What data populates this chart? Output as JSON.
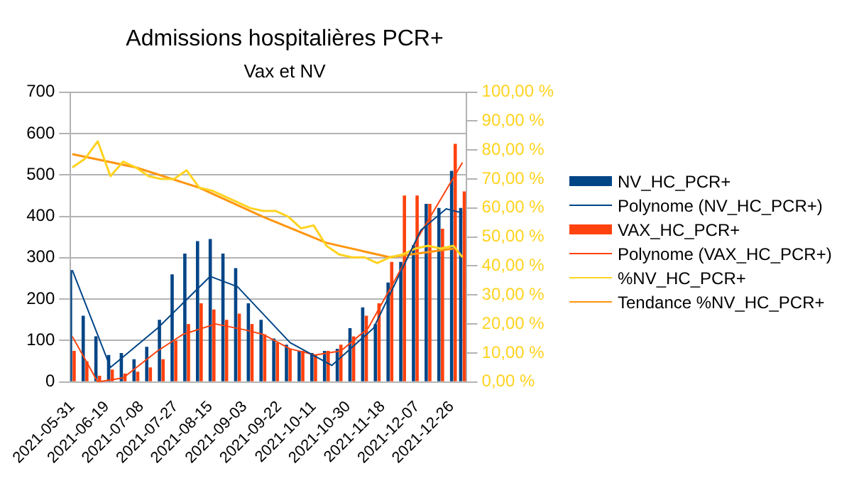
{
  "chart_data": {
    "type": "bar",
    "title": "Admissions hospitalières PCR+",
    "subtitle": "Vax et NV",
    "x": [
      "2021-05-31",
      "2021-06-07",
      "2021-06-14",
      "2021-06-21",
      "2021-06-28",
      "2021-07-05",
      "2021-07-12",
      "2021-07-19",
      "2021-07-26",
      "2021-08-02",
      "2021-08-09",
      "2021-08-16",
      "2021-08-23",
      "2021-08-30",
      "2021-09-06",
      "2021-09-13",
      "2021-09-20",
      "2021-09-27",
      "2021-10-04",
      "2021-10-11",
      "2021-10-18",
      "2021-10-25",
      "2021-11-01",
      "2021-11-08",
      "2021-11-15",
      "2021-11-22",
      "2021-11-29",
      "2021-12-06",
      "2021-12-13",
      "2021-12-20",
      "2021-12-27",
      "2022-01-01"
    ],
    "xlim": [
      "2021-05-30",
      "2022-01-03"
    ],
    "xticks": [
      "2021-05-31",
      "2021-06-19",
      "2021-07-08",
      "2021-07-27",
      "2021-08-15",
      "2021-09-03",
      "2021-09-22",
      "2021-10-11",
      "2021-10-30",
      "2021-11-18",
      "2021-12-07",
      "2021-12-26"
    ],
    "ylim": [
      0,
      700
    ],
    "yticks": [
      0,
      100,
      200,
      300,
      400,
      500,
      600,
      700
    ],
    "y2lim": [
      0,
      100
    ],
    "y2ticks": [
      {
        "value": 0,
        "label": "0,00 %"
      },
      {
        "value": 10,
        "label": "10,00 %"
      },
      {
        "value": 20,
        "label": "20,00 %"
      },
      {
        "value": 30,
        "label": "30,00 %"
      },
      {
        "value": 40,
        "label": "40,00 %"
      },
      {
        "value": 50,
        "label": "50,00 %"
      },
      {
        "value": 60,
        "label": "60,00 %"
      },
      {
        "value": 70,
        "label": "70,00 %"
      },
      {
        "value": 80,
        "label": "80,00 %"
      },
      {
        "value": 90,
        "label": "90,00 %"
      },
      {
        "value": 100,
        "label": "100,00 %"
      }
    ],
    "grid": "y",
    "legend": "right",
    "series": [
      {
        "name": "NV_HC_PCR+",
        "color": "#004586",
        "values": [
          270,
          160,
          110,
          65,
          70,
          55,
          85,
          150,
          260,
          310,
          340,
          345,
          310,
          275,
          190,
          150,
          105,
          90,
          75,
          70,
          75,
          80,
          130,
          180,
          140,
          240,
          290,
          330,
          430,
          420,
          510,
          420
        ]
      },
      {
        "name": "Polynome (NV_HC_PCR+)",
        "type": "line",
        "color": "#004586",
        "x": [
          "2021-05-31",
          "2021-06-21",
          "2021-07-17",
          "2021-08-15",
          "2021-08-30",
          "2021-09-28",
          "2021-10-21",
          "2021-11-13",
          "2021-12-09",
          "2021-12-23",
          "2022-01-01"
        ],
        "values": [
          270,
          35,
          130,
          255,
          230,
          95,
          40,
          130,
          366,
          418,
          408
        ]
      },
      {
        "name": "VAX_HC_PCR+",
        "color": "#ff420e",
        "values": [
          75,
          50,
          15,
          30,
          20,
          25,
          35,
          55,
          100,
          140,
          190,
          175,
          150,
          165,
          140,
          115,
          95,
          80,
          75,
          65,
          75,
          90,
          110,
          160,
          190,
          290,
          450,
          450,
          430,
          370,
          575,
          460
        ]
      },
      {
        "name": "Polynome (VAX_HC_PCR+)",
        "type": "line",
        "color": "#ff420e",
        "x": [
          "2021-05-31",
          "2021-06-14",
          "2021-06-28",
          "2021-07-17",
          "2021-07-31",
          "2021-08-18",
          "2021-09-04",
          "2021-09-13",
          "2021-09-28",
          "2021-10-12",
          "2021-10-26",
          "2021-11-10",
          "2021-11-24",
          "2021-12-09",
          "2022-01-01"
        ],
        "values": [
          110,
          0,
          10,
          75,
          115,
          140,
          125,
          115,
          80,
          65,
          75,
          130,
          240,
          360,
          530
        ]
      },
      {
        "name": "%NV_HC_PCR+",
        "type": "line",
        "axis": "y2",
        "color": "#ffd320",
        "values": [
          74,
          77,
          83,
          71,
          76,
          74,
          71,
          70,
          70,
          73,
          67,
          66,
          64,
          62,
          60,
          59,
          59,
          57,
          53,
          54,
          47,
          44,
          43,
          43,
          41,
          43,
          44,
          46,
          47,
          46,
          47,
          43
        ]
      },
      {
        "name": "Tendance %NV_HC_PCR+",
        "type": "line",
        "axis": "y2",
        "color": "#ff950e",
        "x": [
          "2021-05-31",
          "2021-07-05",
          "2021-08-09",
          "2021-09-13",
          "2021-10-18",
          "2021-11-22",
          "2021-12-27"
        ],
        "values": [
          78.6,
          74,
          67,
          57,
          48,
          43,
          46
        ]
      }
    ]
  }
}
